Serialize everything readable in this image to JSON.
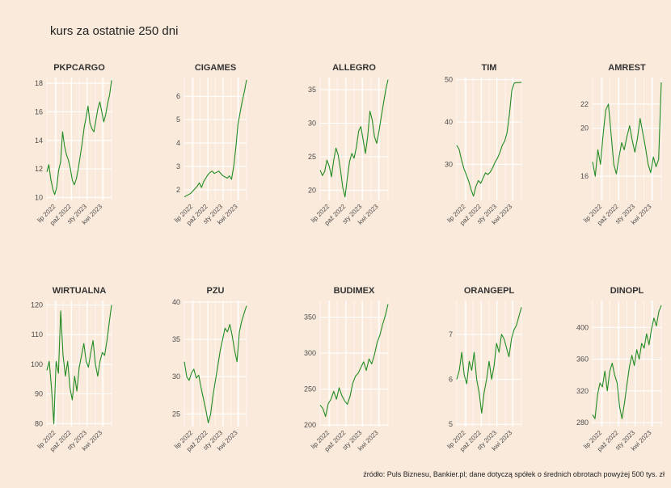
{
  "title": "kurs za ostatnie 250 dni",
  "caption": "źródło: Puls Biznesu, Bankier.pl; dane dotyczą spółek o średnich obrotach powyżej 500 tys. zł",
  "colors": {
    "background": "#faeadb",
    "grid": "#ffffff",
    "line": "#228b22"
  },
  "x_ticks": [
    "lip 2022",
    "paź 2022",
    "sty 2023",
    "kwi 2023"
  ],
  "chart_data": [
    {
      "type": "line",
      "title": "PKPCARGO",
      "yticks": [
        10,
        12,
        14,
        16,
        18
      ],
      "ylim": [
        9.8,
        18.4
      ],
      "values": [
        11.8,
        12.3,
        11.3,
        10.6,
        10.2,
        10.7,
        11.9,
        12.5,
        14.6,
        13.6,
        13.0,
        12.6,
        12.0,
        11.2,
        10.9,
        11.3,
        12.0,
        12.9,
        13.8,
        14.9,
        15.6,
        16.4,
        15.2,
        14.8,
        14.6,
        15.4,
        16.2,
        16.7,
        16.0,
        15.3,
        15.8,
        16.6,
        17.2,
        18.2
      ]
    },
    {
      "type": "line",
      "title": "CIGAMES",
      "yticks": [
        2,
        3,
        4,
        5,
        6
      ],
      "ylim": [
        1.55,
        6.8
      ],
      "values": [
        1.7,
        1.75,
        1.8,
        1.85,
        1.95,
        2.05,
        2.15,
        2.3,
        2.1,
        2.35,
        2.5,
        2.65,
        2.75,
        2.8,
        2.7,
        2.75,
        2.8,
        2.7,
        2.6,
        2.55,
        2.5,
        2.6,
        2.45,
        3.0,
        3.8,
        4.8,
        5.3,
        5.8,
        6.2,
        6.7
      ]
    },
    {
      "type": "line",
      "title": "ALLEGRO",
      "yticks": [
        20,
        25,
        30,
        35
      ],
      "ylim": [
        18.5,
        36.8
      ],
      "values": [
        23.0,
        22.2,
        22.8,
        24.5,
        23.6,
        22.0,
        24.5,
        26.3,
        25.2,
        23.0,
        20.4,
        19.0,
        21.8,
        24.3,
        25.5,
        24.8,
        26.4,
        28.8,
        29.5,
        27.5,
        25.5,
        28.0,
        31.8,
        30.5,
        28.0,
        27.0,
        28.8,
        31.0,
        33.0,
        35.0,
        36.5
      ]
    },
    {
      "type": "line",
      "title": "TIM",
      "yticks": [
        30,
        40,
        50
      ],
      "ylim": [
        21.5,
        50.5
      ],
      "values": [
        34.5,
        33.5,
        31.0,
        29.0,
        27.5,
        26.0,
        24.0,
        22.5,
        24.8,
        26.2,
        25.5,
        26.8,
        28.0,
        27.6,
        28.2,
        29.2,
        30.5,
        31.5,
        32.8,
        34.5,
        35.5,
        37.5,
        42.0,
        47.5,
        49.2,
        49.3,
        49.3,
        49.4
      ]
    },
    {
      "type": "line",
      "title": "AMREST",
      "yticks": [
        16,
        20,
        22
      ],
      "ylim": [
        14.0,
        24.2
      ],
      "values": [
        17.2,
        16.0,
        18.2,
        17.0,
        19.5,
        21.5,
        22.0,
        19.5,
        17.0,
        16.2,
        17.6,
        18.8,
        18.2,
        19.3,
        20.2,
        19.0,
        18.0,
        19.2,
        20.8,
        19.6,
        18.4,
        17.0,
        16.3,
        17.6,
        16.8,
        17.4,
        23.8
      ]
    },
    {
      "type": "line",
      "title": "WIRTUALNA",
      "yticks": [
        80,
        90,
        100,
        110,
        120
      ],
      "ylim": [
        79.0,
        121.5
      ],
      "values": [
        98.0,
        101.0,
        92.0,
        80.0,
        101.0,
        97.0,
        118.0,
        103.0,
        96.0,
        101.0,
        92.0,
        88.0,
        96.0,
        91.0,
        99.0,
        103.0,
        107.0,
        101.0,
        99.0,
        104.0,
        108.0,
        100.0,
        96.0,
        101.0,
        104.0,
        103.0,
        108.0,
        114.0,
        120.0
      ]
    },
    {
      "type": "line",
      "title": "PZU",
      "yticks": [
        25,
        30,
        35,
        40
      ],
      "ylim": [
        23.3,
        40.2
      ],
      "values": [
        32.0,
        30.0,
        29.5,
        30.5,
        31.0,
        29.8,
        30.2,
        28.5,
        27.0,
        25.5,
        23.8,
        25.0,
        27.5,
        29.5,
        31.5,
        33.5,
        35.0,
        36.5,
        36.0,
        37.0,
        35.5,
        33.5,
        32.0,
        36.0,
        37.5,
        38.5,
        39.5
      ]
    },
    {
      "type": "line",
      "title": "BUDIMEX",
      "yticks": [
        200,
        250,
        300,
        350
      ],
      "ylim": [
        198.0,
        373.0
      ],
      "values": [
        228.0,
        223.0,
        212.0,
        230.0,
        236.0,
        247.0,
        236.0,
        252.0,
        241.0,
        234.0,
        229.0,
        240.0,
        258.0,
        268.0,
        272.0,
        280.0,
        288.0,
        276.0,
        292.0,
        285.0,
        298.0,
        315.0,
        325.0,
        340.0,
        352.0,
        368.0
      ]
    },
    {
      "type": "line",
      "title": "ORANGEPL",
      "yticks": [
        5,
        6,
        7
      ],
      "ylim": [
        4.95,
        7.75
      ],
      "values": [
        6.0,
        6.2,
        6.6,
        6.1,
        5.9,
        6.4,
        6.2,
        6.6,
        6.0,
        5.7,
        5.25,
        5.7,
        6.0,
        6.4,
        6.0,
        6.3,
        6.8,
        6.6,
        7.0,
        6.9,
        6.7,
        6.5,
        6.9,
        7.1,
        7.2,
        7.4,
        7.6
      ]
    },
    {
      "type": "line",
      "title": "DINOPL",
      "yticks": [
        280,
        320,
        360,
        400
      ],
      "ylim": [
        275.0,
        434.0
      ],
      "values": [
        290.0,
        285.0,
        315.0,
        330.0,
        325.0,
        345.0,
        320.0,
        345.0,
        355.0,
        340.0,
        330.0,
        300.0,
        285.0,
        305.0,
        328.0,
        350.0,
        365.0,
        352.0,
        372.0,
        360.0,
        380.0,
        374.0,
        392.0,
        378.0,
        398.0,
        412.0,
        402.0,
        420.0,
        428.0
      ]
    }
  ]
}
